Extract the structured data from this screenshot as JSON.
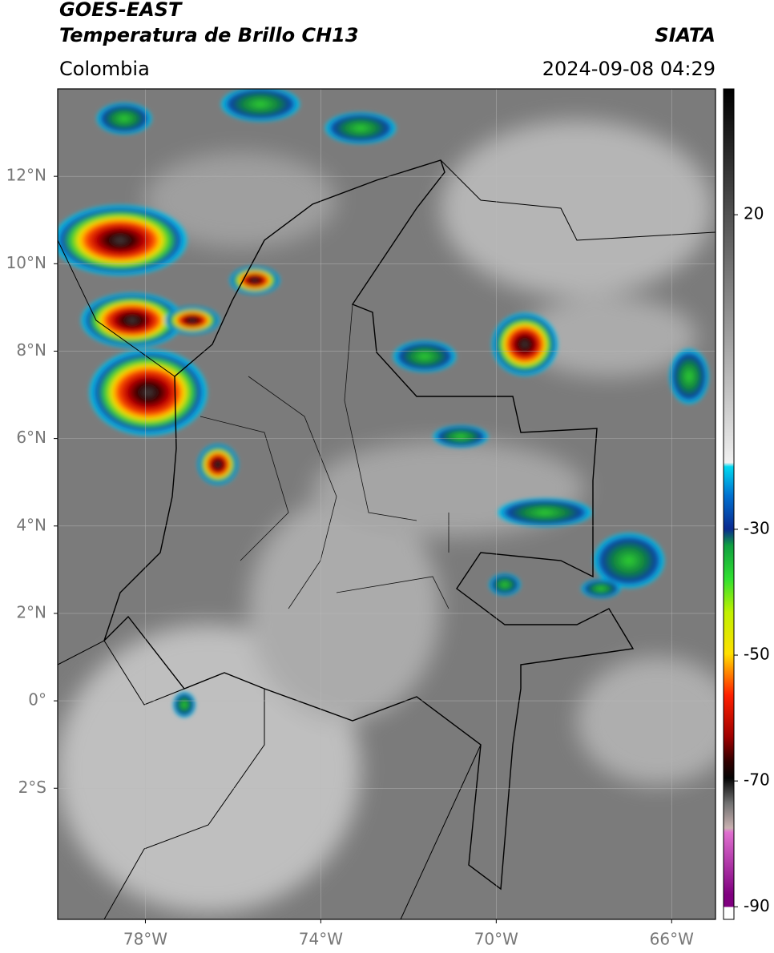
{
  "header": {
    "title": "GOES-EAST",
    "subtitle": "Temperatura de Brillo CH13",
    "source": "SIATA",
    "region": "Colombia",
    "timestamp": "2024-09-08 04:29"
  },
  "map": {
    "xlim": [
      -80,
      -65
    ],
    "ylim": [
      -5,
      14
    ],
    "grid": true,
    "xticks": [
      {
        "value": -78,
        "label": "78°W"
      },
      {
        "value": -74,
        "label": "74°W"
      },
      {
        "value": -70,
        "label": "70°W"
      },
      {
        "value": -66,
        "label": "66°W"
      }
    ],
    "yticks": [
      {
        "value": 12,
        "label": "12°N"
      },
      {
        "value": 10,
        "label": "10°N"
      },
      {
        "value": 8,
        "label": "8°N"
      },
      {
        "value": 6,
        "label": "6°N"
      },
      {
        "value": 4,
        "label": "4°N"
      },
      {
        "value": 2,
        "label": "2°N"
      },
      {
        "value": 0,
        "label": "0°"
      },
      {
        "value": -2,
        "label": "2°S"
      }
    ]
  },
  "colorbar": {
    "lim": [
      -92,
      40
    ],
    "ticks": [
      20,
      -30,
      -50,
      -70,
      -90
    ]
  }
}
